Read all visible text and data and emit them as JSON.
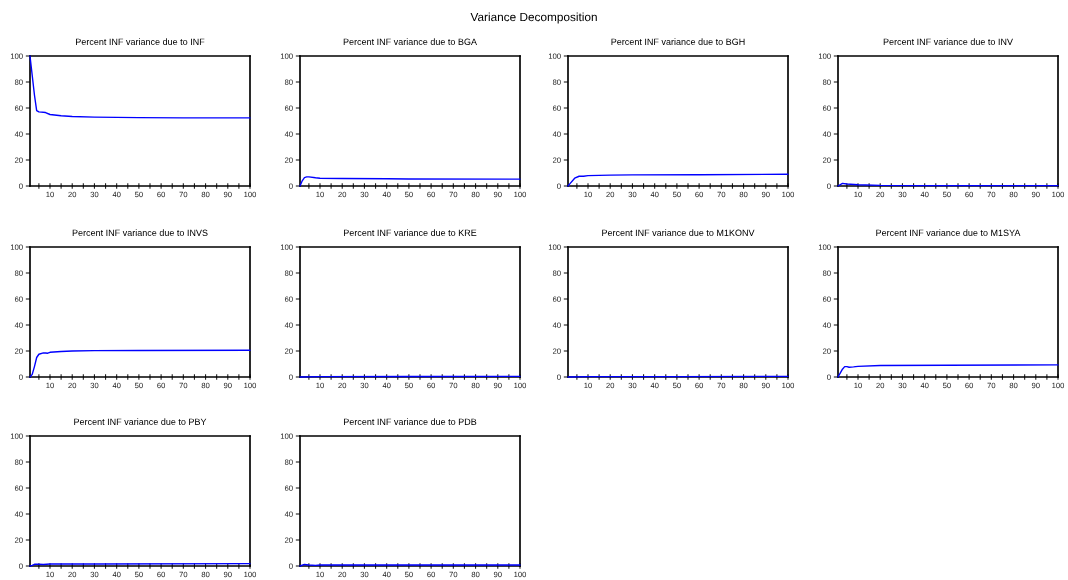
{
  "chart_data": [
    {
      "type": "line",
      "title": "Percent INF variance due to INF",
      "annotations": [
        "Variance Decomposition"
      ],
      "xlim": [
        1,
        100
      ],
      "ylim": [
        0,
        100
      ],
      "xticks": [
        {
          "value": 5,
          "label": null
        },
        10,
        {
          "value": 15,
          "label": null
        },
        20,
        {
          "value": 25,
          "label": null
        },
        30,
        {
          "value": 35,
          "label": null
        },
        40,
        {
          "value": 45,
          "label": null
        },
        50,
        {
          "value": 55,
          "label": null
        },
        60,
        {
          "value": 65,
          "label": null
        },
        70,
        {
          "value": 75,
          "label": null
        },
        80,
        {
          "value": 85,
          "label": null
        },
        90,
        {
          "value": 95,
          "label": null
        },
        100
      ],
      "yticks": [
        0,
        20,
        40,
        60,
        80,
        100
      ],
      "grid": false,
      "legend": false,
      "series": [
        {
          "color": "#0000ff",
          "x": [
            1,
            2,
            3,
            4,
            5,
            8,
            10,
            15,
            20,
            30,
            40,
            50,
            70,
            100
          ],
          "values": [
            100,
            85,
            70,
            58,
            57,
            56.5,
            55,
            54,
            53.5,
            53,
            52.8,
            52.6,
            52.4,
            52.4
          ]
        }
      ]
    },
    {
      "type": "line",
      "title": "Percent INF variance due to BGA",
      "xlim": [
        1,
        100
      ],
      "ylim": [
        0,
        100
      ],
      "xticks": [
        {
          "value": 5,
          "label": null
        },
        10,
        {
          "value": 15,
          "label": null
        },
        20,
        {
          "value": 25,
          "label": null
        },
        30,
        {
          "value": 35,
          "label": null
        },
        40,
        {
          "value": 45,
          "label": null
        },
        50,
        {
          "value": 55,
          "label": null
        },
        60,
        {
          "value": 65,
          "label": null
        },
        70,
        {
          "value": 75,
          "label": null
        },
        80,
        {
          "value": 85,
          "label": null
        },
        90,
        {
          "value": 95,
          "label": null
        },
        100
      ],
      "yticks": [
        0,
        20,
        40,
        60,
        80,
        100
      ],
      "grid": false,
      "legend": false,
      "series": [
        {
          "color": "#0000ff",
          "x": [
            1,
            2,
            3,
            4,
            5,
            8,
            10,
            20,
            40,
            50,
            100
          ],
          "values": [
            0,
            4,
            6.5,
            7,
            7,
            6.3,
            6,
            5.8,
            5.6,
            5.4,
            5.3
          ]
        }
      ]
    },
    {
      "type": "line",
      "title": "Percent INF variance due to BGH",
      "xlim": [
        1,
        100
      ],
      "ylim": [
        0,
        100
      ],
      "xticks": [
        {
          "value": 5,
          "label": null
        },
        10,
        {
          "value": 15,
          "label": null
        },
        20,
        {
          "value": 25,
          "label": null
        },
        30,
        {
          "value": 35,
          "label": null
        },
        40,
        {
          "value": 45,
          "label": null
        },
        50,
        {
          "value": 55,
          "label": null
        },
        60,
        {
          "value": 65,
          "label": null
        },
        70,
        {
          "value": 75,
          "label": null
        },
        80,
        {
          "value": 85,
          "label": null
        },
        90,
        {
          "value": 95,
          "label": null
        },
        100
      ],
      "yticks": [
        0,
        20,
        40,
        60,
        80,
        100
      ],
      "grid": false,
      "legend": false,
      "series": [
        {
          "color": "#0000ff",
          "x": [
            1,
            2,
            4,
            6,
            8,
            10,
            20,
            30,
            60,
            100
          ],
          "values": [
            0,
            2,
            6,
            7.5,
            7.5,
            8,
            8.4,
            8.6,
            8.7,
            9
          ]
        }
      ]
    },
    {
      "type": "line",
      "title": "Percent INF variance due to INV",
      "xlim": [
        1,
        100
      ],
      "ylim": [
        0,
        100
      ],
      "xticks": [
        {
          "value": 5,
          "label": null
        },
        10,
        {
          "value": 15,
          "label": null
        },
        20,
        {
          "value": 25,
          "label": null
        },
        30,
        {
          "value": 35,
          "label": null
        },
        40,
        {
          "value": 45,
          "label": null
        },
        50,
        {
          "value": 55,
          "label": null
        },
        60,
        {
          "value": 65,
          "label": null
        },
        70,
        {
          "value": 75,
          "label": null
        },
        80,
        {
          "value": 85,
          "label": null
        },
        90,
        {
          "value": 95,
          "label": null
        },
        100
      ],
      "yticks": [
        0,
        20,
        40,
        60,
        80,
        100
      ],
      "grid": false,
      "legend": false,
      "series": [
        {
          "color": "#0000ff",
          "x": [
            1,
            3,
            5,
            10,
            20,
            40,
            100
          ],
          "values": [
            0,
            2,
            1.5,
            1,
            0.5,
            0.3,
            0.3
          ]
        }
      ]
    },
    {
      "type": "line",
      "title": "Percent INF variance due to INVS",
      "xlim": [
        1,
        100
      ],
      "ylim": [
        0,
        100
      ],
      "xticks": [
        {
          "value": 5,
          "label": null
        },
        10,
        {
          "value": 15,
          "label": null
        },
        20,
        {
          "value": 25,
          "label": null
        },
        30,
        {
          "value": 35,
          "label": null
        },
        40,
        {
          "value": 45,
          "label": null
        },
        50,
        {
          "value": 55,
          "label": null
        },
        60,
        {
          "value": 65,
          "label": null
        },
        70,
        {
          "value": 75,
          "label": null
        },
        80,
        {
          "value": 85,
          "label": null
        },
        90,
        {
          "value": 95,
          "label": null
        },
        100
      ],
      "yticks": [
        0,
        20,
        40,
        60,
        80,
        100
      ],
      "grid": false,
      "legend": false,
      "series": [
        {
          "color": "#0000ff",
          "x": [
            1,
            2,
            3,
            4,
            5,
            7,
            8,
            9,
            10,
            15,
            20,
            30,
            50,
            100
          ],
          "values": [
            0,
            2,
            8,
            15,
            17.5,
            18.5,
            18.5,
            18.3,
            19,
            19.6,
            20,
            20.3,
            20.4,
            20.6
          ]
        }
      ]
    },
    {
      "type": "line",
      "title": "Percent INF variance due to KRE",
      "xlim": [
        1,
        100
      ],
      "ylim": [
        0,
        100
      ],
      "xticks": [
        {
          "value": 5,
          "label": null
        },
        10,
        {
          "value": 15,
          "label": null
        },
        20,
        {
          "value": 25,
          "label": null
        },
        30,
        {
          "value": 35,
          "label": null
        },
        40,
        {
          "value": 45,
          "label": null
        },
        50,
        {
          "value": 55,
          "label": null
        },
        60,
        {
          "value": 65,
          "label": null
        },
        70,
        {
          "value": 75,
          "label": null
        },
        80,
        {
          "value": 85,
          "label": null
        },
        90,
        {
          "value": 95,
          "label": null
        },
        100
      ],
      "yticks": [
        0,
        20,
        40,
        60,
        80,
        100
      ],
      "grid": false,
      "legend": false,
      "series": [
        {
          "color": "#0000ff",
          "x": [
            1,
            10,
            50,
            100
          ],
          "values": [
            0,
            0.3,
            0.4,
            0.5
          ]
        }
      ]
    },
    {
      "type": "line",
      "title": "Percent INF variance due to M1KONV",
      "xlim": [
        1,
        100
      ],
      "ylim": [
        0,
        100
      ],
      "xticks": [
        {
          "value": 5,
          "label": null
        },
        10,
        {
          "value": 15,
          "label": null
        },
        20,
        {
          "value": 25,
          "label": null
        },
        30,
        {
          "value": 35,
          "label": null
        },
        40,
        {
          "value": 45,
          "label": null
        },
        50,
        {
          "value": 55,
          "label": null
        },
        60,
        {
          "value": 65,
          "label": null
        },
        70,
        {
          "value": 75,
          "label": null
        },
        80,
        {
          "value": 85,
          "label": null
        },
        90,
        {
          "value": 95,
          "label": null
        },
        100
      ],
      "yticks": [
        0,
        20,
        40,
        60,
        80,
        100
      ],
      "grid": false,
      "legend": false,
      "series": [
        {
          "color": "#0000ff",
          "x": [
            1,
            10,
            50,
            100
          ],
          "values": [
            0,
            0.3,
            0.3,
            0.5
          ]
        }
      ]
    },
    {
      "type": "line",
      "title": "Percent INF variance due to M1SYA",
      "xlim": [
        1,
        100
      ],
      "ylim": [
        0,
        100
      ],
      "xticks": [
        {
          "value": 5,
          "label": null
        },
        10,
        {
          "value": 15,
          "label": null
        },
        20,
        {
          "value": 25,
          "label": null
        },
        30,
        {
          "value": 35,
          "label": null
        },
        40,
        {
          "value": 45,
          "label": null
        },
        50,
        {
          "value": 55,
          "label": null
        },
        60,
        {
          "value": 65,
          "label": null
        },
        70,
        {
          "value": 75,
          "label": null
        },
        80,
        {
          "value": 85,
          "label": null
        },
        90,
        {
          "value": 95,
          "label": null
        },
        100
      ],
      "yticks": [
        0,
        20,
        40,
        60,
        80,
        100
      ],
      "grid": false,
      "legend": false,
      "series": [
        {
          "color": "#0000ff",
          "x": [
            1,
            2,
            3,
            4,
            5,
            6,
            8,
            10,
            20,
            50,
            100
          ],
          "values": [
            0,
            3,
            6,
            8,
            8,
            7.5,
            7.8,
            8.2,
            8.8,
            9,
            9.3
          ]
        }
      ]
    },
    {
      "type": "line",
      "title": "Percent INF variance due to PBY",
      "xlim": [
        1,
        100
      ],
      "ylim": [
        0,
        100
      ],
      "xticks": [
        {
          "value": 5,
          "label": null
        },
        10,
        {
          "value": 15,
          "label": null
        },
        20,
        {
          "value": 25,
          "label": null
        },
        30,
        {
          "value": 35,
          "label": null
        },
        40,
        {
          "value": 45,
          "label": null
        },
        50,
        {
          "value": 55,
          "label": null
        },
        60,
        {
          "value": 65,
          "label": null
        },
        70,
        {
          "value": 75,
          "label": null
        },
        80,
        {
          "value": 85,
          "label": null
        },
        90,
        {
          "value": 95,
          "label": null
        },
        100
      ],
      "yticks": [
        0,
        20,
        40,
        60,
        80,
        100
      ],
      "grid": false,
      "legend": false,
      "series": [
        {
          "color": "#0000ff",
          "x": [
            1,
            2,
            3,
            5,
            7,
            10,
            30,
            100
          ],
          "values": [
            0,
            0.5,
            1.3,
            1.3,
            1.2,
            1.5,
            1.5,
            1.8
          ]
        }
      ]
    },
    {
      "type": "line",
      "title": "Percent INF variance due to PDB",
      "xlim": [
        1,
        100
      ],
      "ylim": [
        0,
        100
      ],
      "xticks": [
        {
          "value": 5,
          "label": null
        },
        10,
        {
          "value": 15,
          "label": null
        },
        20,
        {
          "value": 25,
          "label": null
        },
        30,
        {
          "value": 35,
          "label": null
        },
        40,
        {
          "value": 45,
          "label": null
        },
        50,
        {
          "value": 55,
          "label": null
        },
        60,
        {
          "value": 65,
          "label": null
        },
        70,
        {
          "value": 75,
          "label": null
        },
        80,
        {
          "value": 85,
          "label": null
        },
        90,
        {
          "value": 95,
          "label": null
        },
        100
      ],
      "yticks": [
        0,
        20,
        40,
        60,
        80,
        100
      ],
      "grid": false,
      "legend": false,
      "series": [
        {
          "color": "#0000ff",
          "x": [
            1,
            3,
            5,
            8,
            10,
            100
          ],
          "values": [
            0,
            1.2,
            0.8,
            0.5,
            0.8,
            0.8
          ]
        }
      ]
    }
  ]
}
